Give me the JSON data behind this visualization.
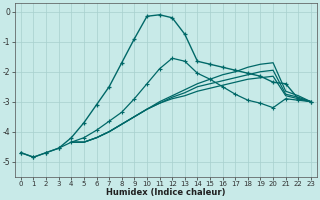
{
  "xlabel": "Humidex (Indice chaleur)",
  "bg_color": "#c8eae8",
  "grid_color": "#a8d0ce",
  "line_color": "#006868",
  "xlim": [
    -0.5,
    23.5
  ],
  "ylim": [
    -5.5,
    0.3
  ],
  "xticks": [
    0,
    1,
    2,
    3,
    4,
    5,
    6,
    7,
    8,
    9,
    10,
    11,
    12,
    13,
    14,
    15,
    16,
    17,
    18,
    19,
    20,
    21,
    22,
    23
  ],
  "yticks": [
    0,
    -1,
    -2,
    -3,
    -4,
    -5
  ],
  "main_x": [
    0,
    1,
    2,
    3,
    4,
    5,
    6,
    7,
    8,
    9,
    10,
    11,
    12,
    13,
    14,
    15,
    16,
    17,
    18,
    19,
    20,
    21,
    22,
    23
  ],
  "main_y": [
    -4.7,
    -4.85,
    -4.7,
    -4.55,
    -4.2,
    -3.7,
    -3.1,
    -2.5,
    -1.7,
    -0.9,
    -0.15,
    -0.1,
    -0.2,
    -0.75,
    -1.65,
    -1.75,
    -1.85,
    -1.95,
    -2.05,
    -2.15,
    -2.35,
    -2.4,
    -2.9,
    -3.0
  ],
  "line1_x": [
    0,
    1,
    2,
    3,
    4,
    5,
    6,
    7,
    8,
    9,
    10,
    11,
    12,
    13,
    14,
    15,
    16,
    17,
    18,
    19,
    20,
    21,
    22,
    23
  ],
  "line1_y": [
    -4.7,
    -4.85,
    -4.7,
    -4.55,
    -4.35,
    -4.2,
    -3.95,
    -3.65,
    -3.35,
    -2.9,
    -2.4,
    -1.9,
    -1.55,
    -1.65,
    -2.05,
    -2.25,
    -2.5,
    -2.75,
    -2.95,
    -3.05,
    -3.2,
    -2.9,
    -2.95,
    -3.0
  ],
  "line2_x": [
    4,
    5,
    6,
    7,
    8,
    9,
    10,
    11,
    12,
    13,
    14,
    15,
    16,
    17,
    18,
    19,
    20,
    21,
    22,
    23
  ],
  "line2_y": [
    -4.35,
    -4.35,
    -4.2,
    -4.0,
    -3.75,
    -3.5,
    -3.25,
    -3.05,
    -2.9,
    -2.8,
    -2.65,
    -2.55,
    -2.45,
    -2.35,
    -2.25,
    -2.2,
    -2.15,
    -2.8,
    -2.9,
    -3.0
  ],
  "line3_x": [
    4,
    5,
    6,
    7,
    8,
    9,
    10,
    11,
    12,
    13,
    14,
    15,
    16,
    17,
    18,
    19,
    20,
    21,
    22,
    23
  ],
  "line3_y": [
    -4.35,
    -4.35,
    -4.2,
    -4.0,
    -3.75,
    -3.5,
    -3.25,
    -3.05,
    -2.85,
    -2.7,
    -2.5,
    -2.4,
    -2.3,
    -2.2,
    -2.1,
    -2.0,
    -1.95,
    -2.75,
    -2.85,
    -3.0
  ],
  "line4_x": [
    4,
    5,
    6,
    7,
    8,
    9,
    10,
    11,
    12,
    13,
    14,
    15,
    16,
    17,
    18,
    19,
    20,
    21,
    22,
    23
  ],
  "line4_y": [
    -4.35,
    -4.35,
    -4.2,
    -4.0,
    -3.75,
    -3.5,
    -3.25,
    -3.0,
    -2.8,
    -2.6,
    -2.4,
    -2.25,
    -2.1,
    -2.0,
    -1.85,
    -1.75,
    -1.7,
    -2.65,
    -2.8,
    -3.0
  ]
}
